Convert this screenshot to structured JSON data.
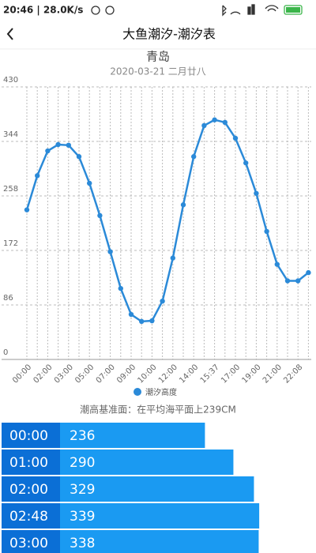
{
  "status_bar": {
    "time_speed": "20:46 | 28.0K/s"
  },
  "header": {
    "title": "大鱼潮汐-潮汐表"
  },
  "chart_data": {
    "type": "line",
    "title": "青岛",
    "subtitle": "2020-03-21 二月廿八",
    "categories": [
      "00:00",
      null,
      "02:00",
      null,
      "03:00",
      null,
      "05:00",
      null,
      "07:00",
      null,
      "09:00",
      null,
      "10:00",
      null,
      "12:00",
      null,
      "14:00",
      null,
      "15:37",
      null,
      "17:00",
      null,
      "19:00",
      null,
      "21:00",
      null,
      "22:08",
      null
    ],
    "series": [
      {
        "name": "潮汐高度",
        "color": "#2b8ad8",
        "values": [
          236,
          290,
          329,
          339,
          338,
          320,
          278,
          227,
          170,
          112,
          71,
          60,
          61,
          92,
          160,
          244,
          320,
          369,
          378,
          374,
          349,
          310,
          262,
          202,
          150,
          124,
          124,
          137
        ]
      }
    ],
    "ylim": [
      0,
      430
    ],
    "yticks": [
      0,
      86,
      172,
      258,
      344,
      430
    ],
    "grid": true
  },
  "datum_note": "潮高基准面：在平均海平面上239CM",
  "table": {
    "rows": [
      [
        "00:00",
        236
      ],
      [
        "01:00",
        290
      ],
      [
        "02:00",
        329
      ],
      [
        "02:48",
        339
      ],
      [
        "03:00",
        338
      ]
    ]
  }
}
